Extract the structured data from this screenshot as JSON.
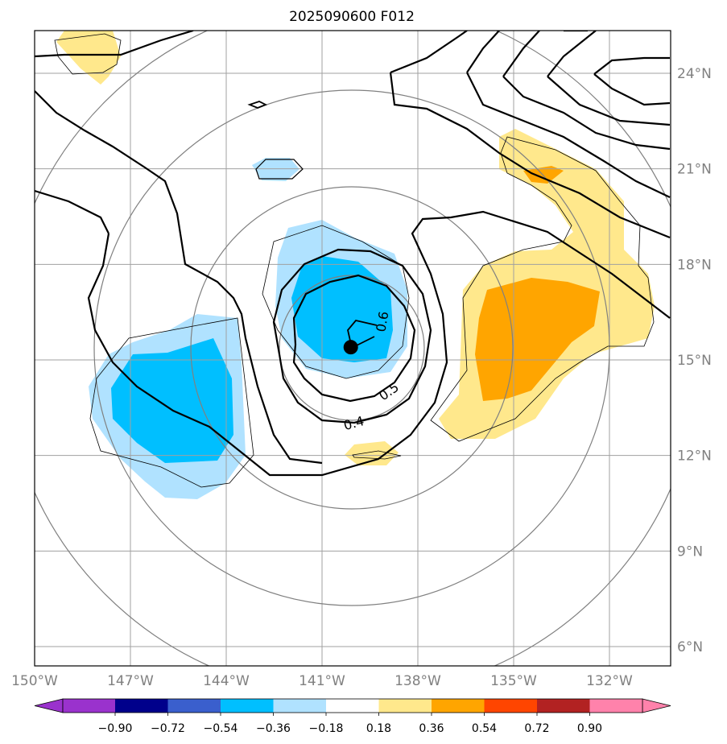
{
  "title": "2025090600 F012",
  "map": {
    "lon_range": [
      -150,
      -130
    ],
    "lat_range": [
      5.5,
      25.5
    ],
    "lon_ticks": [
      {
        "value": -150,
        "label": "150°W"
      },
      {
        "value": -147,
        "label": "147°W"
      },
      {
        "value": -144,
        "label": "144°W"
      },
      {
        "value": -141,
        "label": "141°W"
      },
      {
        "value": -138,
        "label": "138°W"
      },
      {
        "value": -135,
        "label": "135°W"
      },
      {
        "value": -132,
        "label": "132°W"
      }
    ],
    "lat_ticks": [
      {
        "value": 24,
        "label": "24°N"
      },
      {
        "value": 21,
        "label": "21°N"
      },
      {
        "value": 18,
        "label": "18°N"
      },
      {
        "value": 15,
        "label": "15°N"
      },
      {
        "value": 12,
        "label": "12°N"
      },
      {
        "value": 9,
        "label": "9°N"
      },
      {
        "value": 6,
        "label": "6°N"
      }
    ],
    "storm_center": {
      "lon": -140.1,
      "lat": 15.4
    },
    "contour_labels": [
      {
        "text": "0.4",
        "lon": -140.0,
        "lat": 13.0
      },
      {
        "text": "0.5",
        "lon": -138.9,
        "lat": 14.0
      },
      {
        "text": "0.6",
        "lon": -139.1,
        "lat": 16.2
      }
    ]
  },
  "colorbar": {
    "levels": [
      "−0.90",
      "−0.72",
      "−0.54",
      "−0.36",
      "−0.18",
      "0.18",
      "0.36",
      "0.54",
      "0.72",
      "0.90"
    ],
    "colors": [
      "#9a32cd",
      "#00008b",
      "#3a5fcd",
      "#00bfff",
      "#b0e2ff",
      "#ffffff",
      "#ffe88c",
      "#ffa500",
      "#ff4500",
      "#b22222",
      "#ff82ab"
    ]
  },
  "colors": {
    "grid": "#a0a0a0",
    "range_rings": "#808080",
    "contour": "#000000",
    "light_blue": "#b0e2ff",
    "blue": "#00bfff",
    "light_yellow": "#ffe88c",
    "orange": "#ffa500"
  }
}
